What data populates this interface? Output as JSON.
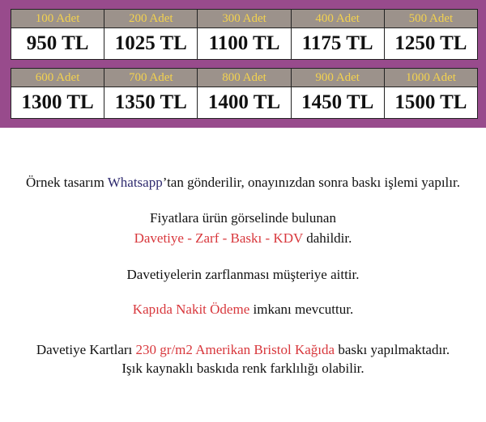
{
  "price_table": {
    "row1": [
      {
        "quantity": "100 Adet",
        "price": "950 TL"
      },
      {
        "quantity": "200 Adet",
        "price": "1025 TL"
      },
      {
        "quantity": "300 Adet",
        "price": "1100 TL"
      },
      {
        "quantity": "400 Adet",
        "price": "1175 TL"
      },
      {
        "quantity": "500 Adet",
        "price": "1250 TL"
      }
    ],
    "row2": [
      {
        "quantity": "600 Adet",
        "price": "1300 TL"
      },
      {
        "quantity": "700 Adet",
        "price": "1350 TL"
      },
      {
        "quantity": "800 Adet",
        "price": "1400 TL"
      },
      {
        "quantity": "900 Adet",
        "price": "1450 TL"
      },
      {
        "quantity": "1000 Adet",
        "price": "1500 TL"
      }
    ]
  },
  "info": {
    "line1_a": "Örnek tasarım ",
    "line1_b": "Whatsapp",
    "line1_c": "’tan gönderilir, onayınızdan sonra baskı işlemi yapılır.",
    "line2": "Fiyatlara ürün görselinde bulunan",
    "line3_a": "Davetiye - Zarf - Baskı - KDV",
    "line3_b": " dahildir.",
    "line4": "Davetiyelerin zarflanması müşteriye aittir.",
    "line5_a": "Kapıda Nakit Ödeme",
    "line5_b": " imkanı mevcuttur.",
    "line6_a": "Davetiye Kartları ",
    "line6_b": "230 gr/m2 Amerikan Bristol Kağıda",
    "line6_c": " baskı yapılmaktadır.",
    "line7": "Işık kaynaklı baskıda renk farklılığı olabilir."
  },
  "colors": {
    "banner": "#984b8c",
    "header": "#9c928b",
    "header_text": "#f3d24f",
    "highlight_red": "#d8373c",
    "highlight_blue": "#2e2a6e"
  }
}
